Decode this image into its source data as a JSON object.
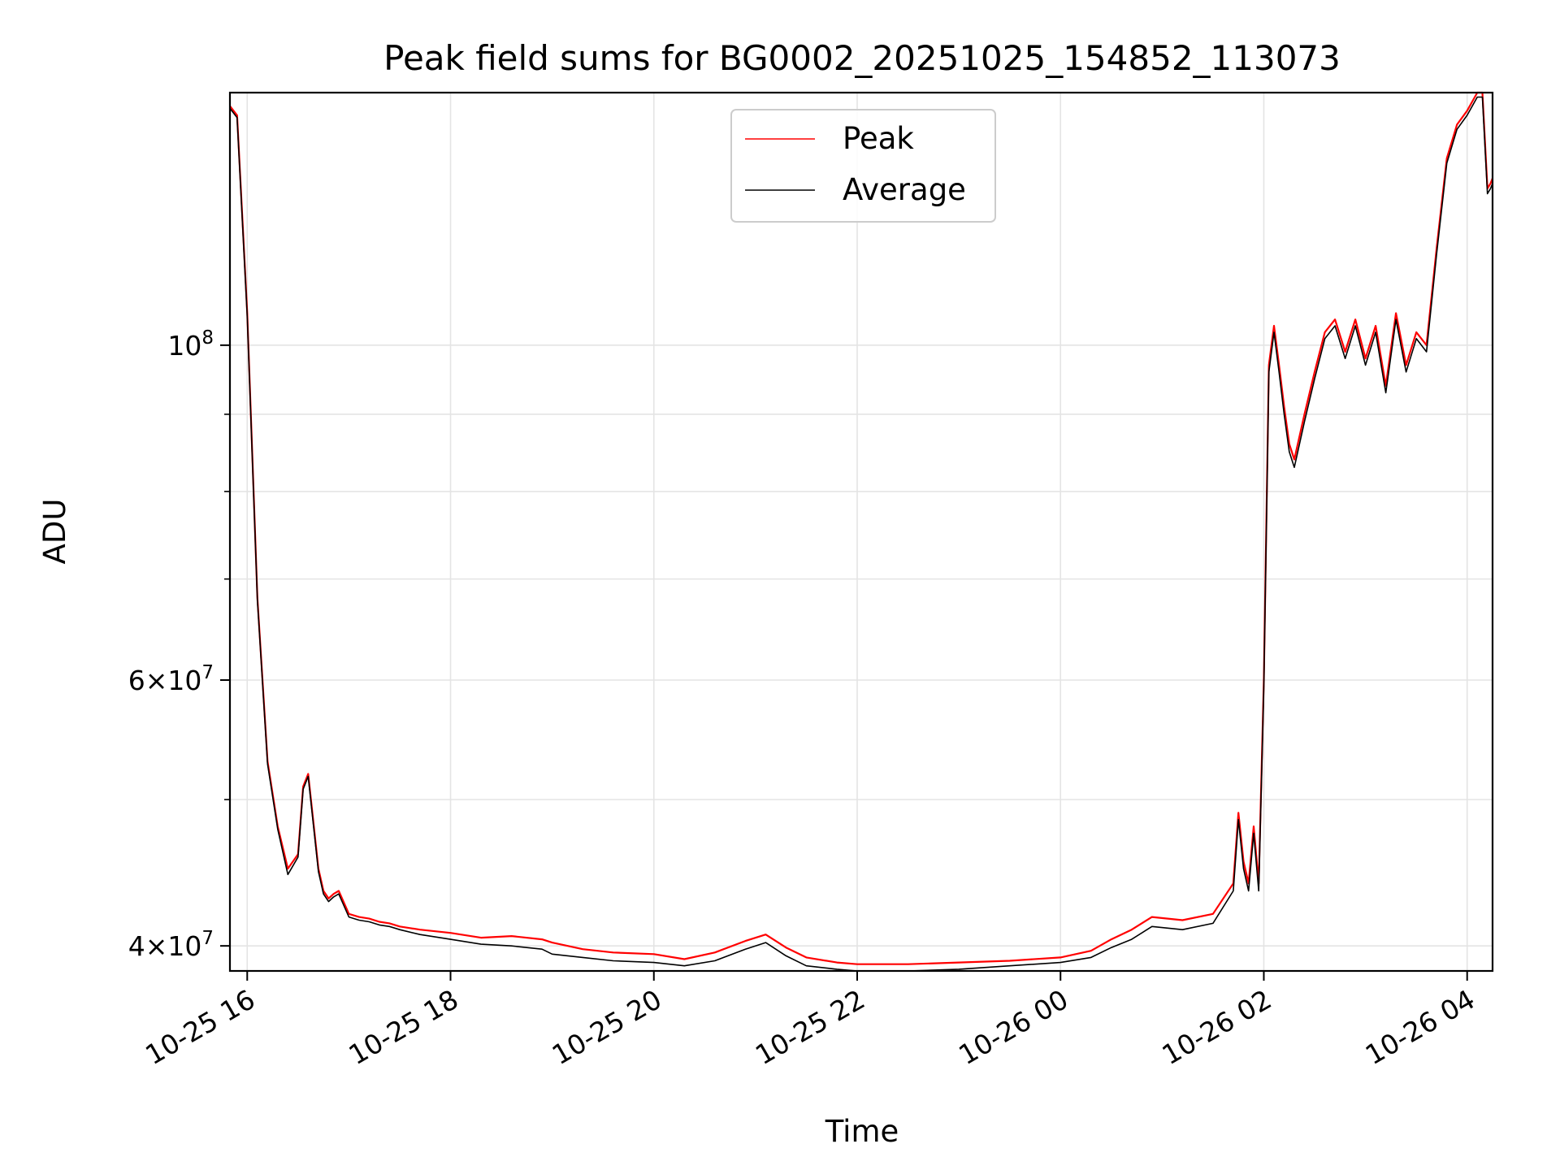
{
  "chart_data": {
    "type": "line",
    "title": "Peak field sums for BG0002_20251025_154852_113073",
    "xlabel": "Time",
    "ylabel": "ADU",
    "yscale": "log",
    "xlim_hours": [
      15.83,
      28.25
    ],
    "ylim": [
      38500000,
      147000000
    ],
    "grid": true,
    "legend_position": "upper center",
    "x_tick_labels": [
      {
        "hour": 16,
        "label": "10-25 16"
      },
      {
        "hour": 18,
        "label": "10-25 18"
      },
      {
        "hour": 20,
        "label": "10-25 20"
      },
      {
        "hour": 22,
        "label": "10-25 22"
      },
      {
        "hour": 24,
        "label": "10-26 00"
      },
      {
        "hour": 26,
        "label": "10-26 02"
      },
      {
        "hour": 28,
        "label": "10-26 04"
      }
    ],
    "y_tick_labels": [
      {
        "value": 40000000,
        "mantissa": "4",
        "exponent": "7"
      },
      {
        "value": 60000000,
        "mantissa": "6",
        "exponent": "7"
      },
      {
        "value": 100000000,
        "mantissa": "",
        "exponent": "8"
      }
    ],
    "y_minor_ticks": [
      50000000,
      70000000,
      80000000,
      90000000
    ],
    "series": [
      {
        "name": "Peak",
        "color": "#ff0000",
        "x_hours": [
          15.83,
          15.9,
          16.0,
          16.1,
          16.2,
          16.3,
          16.4,
          16.5,
          16.55,
          16.6,
          16.7,
          16.75,
          16.8,
          16.85,
          16.9,
          17.0,
          17.1,
          17.2,
          17.3,
          17.4,
          17.5,
          17.7,
          18.0,
          18.3,
          18.6,
          18.9,
          19.0,
          19.3,
          19.6,
          20.0,
          20.3,
          20.6,
          20.9,
          21.1,
          21.3,
          21.5,
          21.8,
          22.0,
          22.5,
          23.0,
          23.5,
          24.0,
          24.3,
          24.5,
          24.7,
          24.9,
          25.2,
          25.5,
          25.7,
          25.75,
          25.8,
          25.85,
          25.9,
          25.95,
          26.0,
          26.05,
          26.1,
          26.15,
          26.2,
          26.25,
          26.3,
          26.4,
          26.5,
          26.6,
          26.7,
          26.8,
          26.9,
          27.0,
          27.1,
          27.2,
          27.3,
          27.4,
          27.5,
          27.6,
          27.7,
          27.8,
          27.9,
          28.0,
          28.1,
          28.15,
          28.2,
          28.23,
          28.25
        ],
        "values": [
          144000000,
          142000000,
          105000000,
          68000000,
          53000000,
          48000000,
          45000000,
          46000000,
          51000000,
          52000000,
          45000000,
          43500000,
          43000000,
          43300000,
          43500000,
          42000000,
          41800000,
          41700000,
          41500000,
          41400000,
          41200000,
          41000000,
          40800000,
          40500000,
          40600000,
          40400000,
          40200000,
          39800000,
          39600000,
          39500000,
          39200000,
          39600000,
          40300000,
          40700000,
          39900000,
          39300000,
          39000000,
          38900000,
          38900000,
          39000000,
          39100000,
          39300000,
          39700000,
          40400000,
          41000000,
          41800000,
          41600000,
          42000000,
          44000000,
          49000000,
          45500000,
          44000000,
          48000000,
          44000000,
          60000000,
          97000000,
          103000000,
          97000000,
          91000000,
          86000000,
          84000000,
          90000000,
          96000000,
          102000000,
          104000000,
          99000000,
          104000000,
          98000000,
          103000000,
          94000000,
          105000000,
          97000000,
          102000000,
          100000000,
          116000000,
          133000000,
          140000000,
          143000000,
          147000000,
          147000000,
          127000000,
          128000000,
          129000000
        ]
      },
      {
        "name": "Average",
        "color": "#000000",
        "x_hours": [
          15.83,
          15.9,
          16.0,
          16.1,
          16.2,
          16.3,
          16.4,
          16.5,
          16.55,
          16.6,
          16.7,
          16.75,
          16.8,
          16.85,
          16.9,
          17.0,
          17.1,
          17.2,
          17.3,
          17.4,
          17.5,
          17.7,
          18.0,
          18.3,
          18.6,
          18.9,
          19.0,
          19.3,
          19.6,
          20.0,
          20.3,
          20.6,
          20.9,
          21.1,
          21.3,
          21.5,
          21.8,
          22.0,
          22.5,
          23.0,
          23.5,
          24.0,
          24.3,
          24.5,
          24.7,
          24.9,
          25.2,
          25.5,
          25.7,
          25.75,
          25.8,
          25.85,
          25.9,
          25.95,
          26.0,
          26.05,
          26.1,
          26.15,
          26.2,
          26.25,
          26.3,
          26.4,
          26.5,
          26.6,
          26.7,
          26.8,
          26.9,
          27.0,
          27.1,
          27.2,
          27.3,
          27.4,
          27.5,
          27.6,
          27.7,
          27.8,
          27.9,
          28.0,
          28.1,
          28.15,
          28.2,
          28.23,
          28.25
        ],
        "values": [
          143500000,
          141500000,
          104500000,
          67800000,
          52800000,
          47800000,
          44600000,
          45800000,
          50800000,
          51800000,
          44800000,
          43300000,
          42800000,
          43100000,
          43300000,
          41800000,
          41600000,
          41500000,
          41300000,
          41200000,
          41000000,
          40700000,
          40400000,
          40100000,
          40000000,
          39800000,
          39500000,
          39300000,
          39100000,
          39000000,
          38800000,
          39100000,
          39800000,
          40200000,
          39400000,
          38800000,
          38600000,
          38500000,
          38500000,
          38600000,
          38800000,
          39000000,
          39300000,
          39900000,
          40400000,
          41200000,
          41000000,
          41400000,
          43500000,
          48500000,
          45000000,
          43500000,
          47500000,
          43500000,
          59500000,
          96000000,
          102000000,
          96000000,
          90000000,
          85000000,
          83000000,
          89000000,
          95000000,
          101000000,
          103000000,
          98000000,
          103000000,
          97000000,
          102000000,
          93000000,
          104000000,
          96000000,
          101000000,
          99000000,
          115000000,
          132000000,
          139000000,
          142000000,
          146000000,
          146000000,
          126000000,
          127000000,
          128000000
        ]
      }
    ]
  }
}
